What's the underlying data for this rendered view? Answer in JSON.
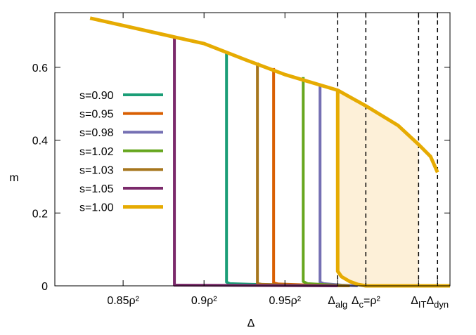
{
  "chart_data": {
    "type": "line",
    "x_label": "Δ",
    "y_label": "m",
    "xlim": [
      0.8078,
      1.052
    ],
    "ylim": [
      0,
      0.75
    ],
    "xticks": [
      {
        "value": 0.85,
        "label": "0.85ρ²"
      },
      {
        "value": 0.9,
        "label": "0.9ρ²"
      },
      {
        "value": 0.95,
        "label": "0.95ρ²"
      },
      {
        "value": 0.9826,
        "label": "Δ",
        "sub": "alg"
      },
      {
        "value": 1.0,
        "label": "Δ",
        "sub": "c",
        "suffix": "=ρ²"
      },
      {
        "value": 1.0326,
        "label": "Δ",
        "sub": "IT"
      },
      {
        "value": 1.0443,
        "label": "Δ",
        "sub": "dyn"
      }
    ],
    "dashed_xticks": [
      3,
      4,
      5,
      6
    ],
    "yticks": [
      0,
      0.2,
      0.4,
      0.6
    ],
    "grid": false,
    "shaded_range": [
      0.9826,
      1.0326
    ],
    "shade_color": "#fdf0d8",
    "series": [
      {
        "name": "s=0.90",
        "color": "#1b9e77",
        "x": [
          0.9139,
          0.9139,
          0.916,
          0.93,
          0.96,
          0.99
        ],
        "values": [
          0.638,
          0.01,
          0.006,
          0.004,
          0.002,
          0
        ]
      },
      {
        "name": "s=0.95",
        "color": "#d95f02",
        "x": [
          0.943,
          0.943,
          0.946,
          0.96,
          0.99
        ],
        "values": [
          0.598,
          0.008,
          0.005,
          0.003,
          0
        ]
      },
      {
        "name": "s=0.98",
        "color": "#7570b3",
        "x": [
          0.9717,
          0.9717,
          0.974,
          0.985,
          0.995
        ],
        "values": [
          0.553,
          0.01,
          0.006,
          0.002,
          0
        ]
      },
      {
        "name": "s=1.02",
        "color": "#66a61e",
        "x": [
          0.9613,
          0.9613,
          0.964,
          0.98,
          0.99
        ],
        "values": [
          0.573,
          0.012,
          0.006,
          0.002,
          0
        ]
      },
      {
        "name": "s=1.03",
        "color": "#a6761d",
        "x": [
          0.933,
          0.933,
          0.936,
          0.96,
          0.99
        ],
        "values": [
          0.613,
          0.006,
          0.004,
          0.002,
          0
        ]
      },
      {
        "name": "s=1.05",
        "color": "#7b2a6b",
        "x": [
          0.8817,
          0.8817,
          0.9826
        ],
        "values": [
          0.683,
          0.002,
          0
        ]
      },
      {
        "name": "s=1.00",
        "color": "#e6ab02",
        "x": [
          0.8296,
          0.8817,
          0.9,
          0.926,
          0.95,
          0.9826,
          1.0,
          1.02,
          1.0326,
          1.04,
          1.0443,
          null,
          0.9826,
          0.9826,
          0.985,
          0.99,
          0.995,
          1.0,
          1.052
        ],
        "values": [
          0.735,
          0.683,
          0.665,
          0.62,
          0.58,
          0.537,
          0.494,
          0.44,
          0.388,
          0.355,
          0.3115,
          null,
          0.537,
          0.04,
          0.025,
          0.012,
          0.004,
          0,
          0
        ]
      }
    ]
  }
}
